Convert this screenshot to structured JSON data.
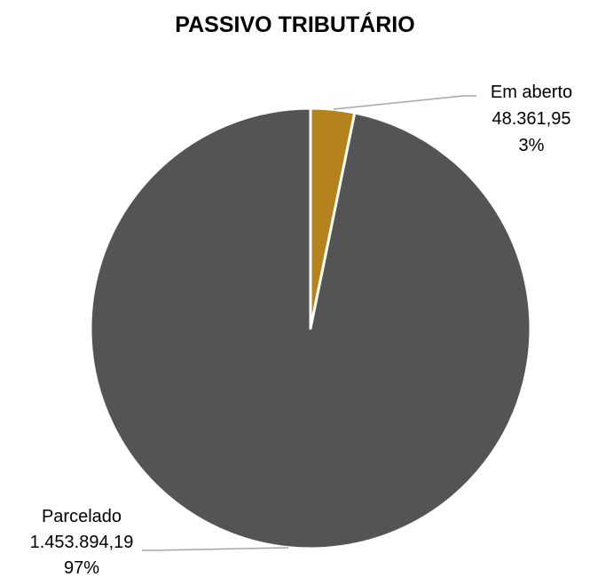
{
  "chart_data": {
    "type": "pie",
    "title": "PASSIVO TRIBUTÁRIO",
    "slices": [
      {
        "label": "Em aberto",
        "value_text": "48.361,95",
        "percent_text": "3%",
        "value": 48361.95,
        "color": "#B5831E"
      },
      {
        "label": "Parcelado",
        "value_text": "1.453.894,19",
        "percent_text": "97%",
        "value": 1453894.19,
        "color": "#545454"
      }
    ],
    "start_angle": "12 o'clock",
    "direction": "clockwise",
    "slice_border_color": "#ffffff",
    "leader_line_color": "#A6A6A6"
  }
}
